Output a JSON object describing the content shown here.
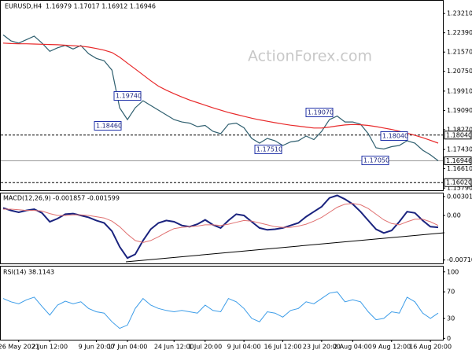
{
  "chart_data": [
    {
      "type": "line",
      "title": "EURUSD,H4",
      "subtitle": "1.16979 1.17017 1.16912 1.16946",
      "watermark": "ActionForex.com",
      "ylim": [
        1.1566,
        1.2375
      ],
      "yticks": [
        {
          "value": 1.2321,
          "label": "1.23210"
        },
        {
          "value": 1.2239,
          "label": "1.22390"
        },
        {
          "value": 1.2157,
          "label": "1.21570"
        },
        {
          "value": 1.2075,
          "label": "1.20750"
        },
        {
          "value": 1.1991,
          "label": "1.19910"
        },
        {
          "value": 1.1909,
          "label": "1.19090"
        },
        {
          "value": 1.1827,
          "label": "1.18270"
        },
        {
          "value": 1.1743,
          "label": "1.17430"
        },
        {
          "value": 1.1661,
          "label": "1.16610"
        },
        {
          "value": 1.1579,
          "label": "1.15790"
        }
      ],
      "levels": [
        {
          "value": 1.1804,
          "label": "1.18040",
          "style": "dashed"
        },
        {
          "value": 1.16946,
          "label": "1.16946",
          "style": "solid"
        },
        {
          "value": 1.1602,
          "label": "1.16020",
          "style": "dashed"
        }
      ],
      "annotations": [
        "1.19740",
        "1.18460",
        "1.17510",
        "1.19070",
        "1.18040",
        "1.17050"
      ],
      "series": [
        {
          "color": "#2f5f6f",
          "width": 1.2,
          "values": [
            1.223,
            1.2205,
            1.2195,
            1.221,
            1.2225,
            1.2195,
            1.216,
            1.2175,
            1.2185,
            1.217,
            1.2185,
            1.215,
            1.213,
            1.212,
            1.208,
            1.192,
            1.187,
            1.192,
            1.195,
            1.193,
            1.191,
            1.189,
            1.187,
            1.186,
            1.1855,
            1.184,
            1.1845,
            1.182,
            1.181,
            1.185,
            1.1855,
            1.1835,
            1.179,
            1.177,
            1.179,
            1.178,
            1.176,
            1.1775,
            1.178,
            1.18,
            1.1785,
            1.182,
            1.187,
            1.1885,
            1.186,
            1.186,
            1.185,
            1.181,
            1.175,
            1.1745,
            1.1755,
            1.176,
            1.178,
            1.177,
            1.174,
            1.172,
            1.1695
          ]
        },
        {
          "color": "#e8292a",
          "width": 1.2,
          "values": [
            1.2195,
            1.2193,
            1.2192,
            1.2192,
            1.2191,
            1.219,
            1.2189,
            1.2188,
            1.2186,
            1.2184,
            1.2182,
            1.2178,
            1.2172,
            1.2165,
            1.2155,
            1.2135,
            1.211,
            1.2085,
            1.206,
            1.2035,
            1.2012,
            1.1995,
            1.198,
            1.1966,
            1.1953,
            1.1942,
            1.1931,
            1.192,
            1.191,
            1.19,
            1.1892,
            1.1884,
            1.1876,
            1.1869,
            1.1863,
            1.1857,
            1.1851,
            1.1846,
            1.1842,
            1.1838,
            1.1834,
            1.1834,
            1.1838,
            1.1843,
            1.1847,
            1.1849,
            1.1848,
            1.1845,
            1.184,
            1.1834,
            1.1828,
            1.182,
            1.1812,
            1.1803,
            1.1793,
            1.1782,
            1.177
          ]
        }
      ]
    },
    {
      "type": "line",
      "title": "MACD(12,26,9) -0.001857 -0.001599",
      "ylim": [
        -0.00778,
        0.00351
      ],
      "yticks": [
        0.003012,
        {
          "value": 0,
          "label": "0.00"
        },
        -0.007109
      ],
      "series": [
        {
          "color": "#1a237e",
          "width": 2,
          "values": [
            0.0012,
            0.0008,
            0.0005,
            0.0008,
            0.001,
            0.0004,
            -0.001,
            -0.0005,
            0.0002,
            0.0003,
            0.0,
            -0.0003,
            -0.0008,
            -0.0012,
            -0.0025,
            -0.005,
            -0.0068,
            -0.0062,
            -0.004,
            -0.0022,
            -0.0012,
            -0.0008,
            -0.001,
            -0.0016,
            -0.0018,
            -0.0014,
            -0.0007,
            -0.0015,
            -0.002,
            -0.0008,
            0.0002,
            0.0,
            -0.001,
            -0.002,
            -0.0023,
            -0.0022,
            -0.002,
            -0.0016,
            -0.0012,
            -0.0002,
            0.0006,
            0.0014,
            0.0028,
            0.0032,
            0.0026,
            0.0018,
            0.0006,
            -0.0008,
            -0.0022,
            -0.0028,
            -0.0024,
            -0.001,
            0.0006,
            0.0004,
            -0.0008,
            -0.0018,
            -0.0019
          ]
        },
        {
          "color": "#e07070",
          "width": 1,
          "values": [
            0.001,
            0.001,
            0.0009,
            0.0008,
            0.0008,
            0.0007,
            0.0003,
            0.0,
            0.0,
            0.0001,
            0.0001,
            0.0,
            -0.0002,
            -0.0004,
            -0.0009,
            -0.0018,
            -0.003,
            -0.004,
            -0.0043,
            -0.004,
            -0.0034,
            -0.0027,
            -0.0021,
            -0.0019,
            -0.0018,
            -0.0017,
            -0.0015,
            -0.0015,
            -0.0016,
            -0.0014,
            -0.0011,
            -0.0008,
            -0.0009,
            -0.0012,
            -0.0015,
            -0.0018,
            -0.0019,
            -0.0019,
            -0.0017,
            -0.0014,
            -0.0009,
            -0.0003,
            0.0005,
            0.0013,
            0.0018,
            0.0019,
            0.0017,
            0.0011,
            0.0002,
            -0.0007,
            -0.0013,
            -0.0015,
            -0.001,
            -0.0006,
            -0.0006,
            -0.001,
            -0.0016
          ]
        }
      ]
    },
    {
      "type": "line",
      "title": "RSI(14) 38.1143",
      "ylim": [
        -2,
        108
      ],
      "yticks": [
        100,
        70,
        30,
        0
      ],
      "categories": [
        null,
        null,
        "26 May 2021",
        null,
        null,
        null,
        "2 Jun 12:00",
        null,
        null,
        null,
        null,
        null,
        "9 Jun 20:00",
        null,
        null,
        null,
        "17 Jun 04:00",
        null,
        null,
        null,
        null,
        null,
        "24 Jun 12:00",
        null,
        null,
        null,
        "1 Jul 20:00",
        null,
        null,
        null,
        null,
        "9 Jul 04:00",
        null,
        null,
        null,
        null,
        "16 Jul 12:00",
        null,
        null,
        null,
        null,
        "23 Jul 20:00",
        null,
        null,
        null,
        "2 Aug 04:00",
        null,
        null,
        null,
        null,
        "9 Aug 12:00",
        null,
        null,
        null,
        null,
        "16 Aug 20:00",
        null
      ],
      "series": [
        {
          "color": "#3b9ce8",
          "width": 1,
          "values": [
            60,
            55,
            52,
            58,
            62,
            48,
            35,
            50,
            56,
            52,
            55,
            45,
            40,
            38,
            25,
            15,
            20,
            45,
            60,
            50,
            45,
            42,
            40,
            42,
            40,
            38,
            50,
            42,
            40,
            60,
            55,
            45,
            30,
            25,
            40,
            38,
            32,
            42,
            45,
            55,
            52,
            60,
            68,
            70,
            55,
            58,
            55,
            40,
            28,
            30,
            40,
            38,
            62,
            55,
            38,
            30,
            38
          ]
        }
      ]
    }
  ]
}
